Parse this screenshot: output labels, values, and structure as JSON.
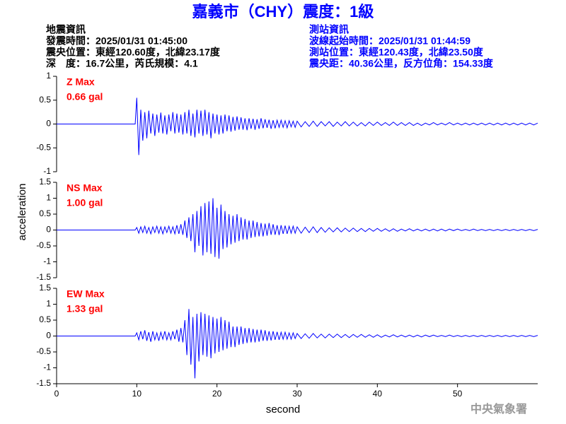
{
  "header": {
    "title": "嘉義市（CHY）震度：1級",
    "left": [
      "地震資訊",
      "發震時間：2025/01/31 01:45:00",
      "震央位置：東經120.60度，北緯23.17度",
      "深　度：16.7公里，芮氏規模：4.1"
    ],
    "right": [
      "測站資訊",
      "波線起始時間：2025/01/31 01:44:59",
      "測站位置：東經120.43度，北緯23.50度",
      "震央距：40.36公里，反方位角：154.33度"
    ]
  },
  "y_label": "acceleration",
  "watermark": "中央氣象署",
  "chart_data": [
    {
      "type": "line",
      "component_label": "Z Max",
      "max_label": "0.66 gal",
      "color": "#0000ff",
      "label_color": "#ff0000",
      "xlim": [
        0,
        60
      ],
      "ylim": [
        -1,
        1
      ],
      "yticks": [
        -1,
        -0.5,
        0,
        0.5,
        1
      ],
      "x": [
        0,
        9.8,
        10,
        10.25,
        10.5,
        10.75,
        11,
        11.25,
        11.5,
        11.75,
        12,
        12.25,
        12.5,
        12.75,
        13,
        13.25,
        13.5,
        13.75,
        14,
        14.25,
        14.5,
        14.75,
        15,
        15.25,
        15.5,
        15.75,
        16,
        16.25,
        16.5,
        16.75,
        17,
        17.25,
        17.5,
        17.75,
        18,
        18.25,
        18.5,
        18.75,
        19,
        19.25,
        19.5,
        19.75,
        20,
        20.25,
        20.5,
        20.75,
        21,
        21.25,
        21.5,
        21.75,
        22,
        22.25,
        22.5,
        22.75,
        23,
        23.25,
        23.5,
        23.75,
        24,
        24.25,
        24.5,
        24.75,
        25,
        25.25,
        25.5,
        25.75,
        26,
        26.25,
        26.5,
        26.75,
        27,
        27.25,
        27.5,
        27.75,
        28,
        28.25,
        28.5,
        28.75,
        29,
        29.25,
        29.5,
        29.75,
        30,
        30.5,
        31,
        31.5,
        32,
        32.5,
        33,
        33.5,
        34,
        34.5,
        35,
        35.5,
        36,
        36.5,
        37,
        37.5,
        38,
        38.5,
        39,
        39.5,
        40,
        40.5,
        41,
        41.5,
        42,
        42.5,
        43,
        43.5,
        44,
        44.5,
        45,
        45.5,
        46,
        46.5,
        47,
        47.5,
        48,
        48.5,
        49,
        49.5,
        50,
        50.5,
        51,
        51.5,
        52,
        52.5,
        53,
        53.5,
        54,
        54.5,
        55,
        55.5,
        56,
        56.5,
        57,
        57.5,
        58,
        58.5,
        59,
        59.5,
        60
      ],
      "values": [
        0,
        0,
        0.55,
        -0.65,
        0.3,
        -0.35,
        0.25,
        -0.3,
        0.28,
        -0.2,
        0.22,
        -0.25,
        0.2,
        -0.18,
        0.24,
        -0.2,
        0.18,
        -0.22,
        0.2,
        -0.15,
        0.25,
        -0.2,
        0.22,
        -0.18,
        0.2,
        -0.22,
        0.25,
        -0.2,
        0.3,
        -0.25,
        0.22,
        -0.28,
        0.3,
        -0.2,
        0.28,
        -0.25,
        0.3,
        -0.22,
        0.25,
        -0.3,
        0.22,
        -0.2,
        0.2,
        -0.22,
        0.18,
        -0.2,
        0.2,
        -0.15,
        0.18,
        -0.16,
        0.15,
        -0.14,
        0.16,
        -0.12,
        0.14,
        -0.12,
        0.12,
        -0.13,
        0.12,
        -0.1,
        0.11,
        -0.12,
        0.1,
        -0.1,
        0.12,
        -0.09,
        0.1,
        -0.08,
        0.09,
        -0.1,
        0.08,
        -0.09,
        0.08,
        -0.07,
        0.08,
        -0.07,
        0.07,
        -0.08,
        0.07,
        -0.06,
        0.06,
        -0.07,
        0.06,
        -0.06,
        0.05,
        -0.05,
        0.06,
        -0.05,
        0.05,
        -0.04,
        0.05,
        -0.05,
        0.04,
        -0.04,
        0.05,
        -0.04,
        0.04,
        -0.04,
        0.03,
        -0.04,
        0.04,
        -0.03,
        0.04,
        -0.03,
        0.03,
        -0.03,
        0.04,
        -0.03,
        0.03,
        -0.03,
        0.03,
        -0.03,
        0.02,
        -0.03,
        0.02,
        -0.02,
        0.03,
        -0.02,
        0.02,
        -0.02,
        0.03,
        -0.02,
        0.02,
        -0.02,
        0.02,
        -0.02,
        0.02,
        -0.02,
        0.02,
        -0.02,
        0.02,
        -0.02,
        0.02,
        -0.02,
        0.02,
        -0.02,
        0.02,
        -0.02,
        0.02,
        -0.02,
        0.02,
        -0.02,
        0.02
      ]
    },
    {
      "type": "line",
      "component_label": "NS Max",
      "max_label": "1.00 gal",
      "color": "#0000ff",
      "label_color": "#ff0000",
      "xlim": [
        0,
        60
      ],
      "ylim": [
        -1.5,
        1.5
      ],
      "yticks": [
        -1.5,
        -1,
        -0.5,
        0,
        0.5,
        1,
        1.5
      ],
      "x": [
        0,
        9.8,
        10,
        10.25,
        10.5,
        10.75,
        11,
        11.25,
        11.5,
        11.75,
        12,
        12.25,
        12.5,
        12.75,
        13,
        13.25,
        13.5,
        13.75,
        14,
        14.25,
        14.5,
        14.75,
        15,
        15.25,
        15.5,
        15.75,
        16,
        16.25,
        16.5,
        16.75,
        17,
        17.25,
        17.5,
        17.75,
        18,
        18.25,
        18.5,
        18.75,
        19,
        19.25,
        19.5,
        19.75,
        20,
        20.25,
        20.5,
        20.75,
        21,
        21.25,
        21.5,
        21.75,
        22,
        22.25,
        22.5,
        22.75,
        23,
        23.25,
        23.5,
        23.75,
        24,
        24.25,
        24.5,
        24.75,
        25,
        25.25,
        25.5,
        25.75,
        26,
        26.25,
        26.5,
        26.75,
        27,
        27.25,
        27.5,
        27.75,
        28,
        28.25,
        28.5,
        28.75,
        29,
        29.25,
        29.5,
        29.75,
        30,
        30.5,
        31,
        31.5,
        32,
        32.5,
        33,
        33.5,
        34,
        34.5,
        35,
        35.5,
        36,
        36.5,
        37,
        37.5,
        38,
        38.5,
        39,
        39.5,
        40,
        40.5,
        41,
        41.5,
        42,
        42.5,
        43,
        43.5,
        44,
        44.5,
        45,
        45.5,
        46,
        46.5,
        47,
        47.5,
        48,
        48.5,
        49,
        49.5,
        50,
        50.5,
        51,
        51.5,
        52,
        52.5,
        53,
        53.5,
        54,
        54.5,
        55,
        55.5,
        56,
        56.5,
        57,
        57.5,
        58,
        58.5,
        59,
        59.5,
        60
      ],
      "values": [
        0,
        0,
        0.08,
        -0.1,
        0.1,
        -0.08,
        0.12,
        -0.1,
        0.08,
        -0.12,
        0.1,
        -0.08,
        0.12,
        -0.1,
        0.1,
        -0.12,
        0.1,
        -0.08,
        0.12,
        -0.1,
        0.1,
        -0.12,
        0.15,
        -0.12,
        0.18,
        -0.15,
        0.3,
        -0.25,
        0.4,
        -0.35,
        0.5,
        -0.7,
        0.6,
        -0.5,
        0.75,
        -0.8,
        0.85,
        -0.7,
        0.9,
        -0.75,
        1.0,
        -0.85,
        0.7,
        -0.9,
        0.8,
        -0.6,
        0.6,
        -0.55,
        0.5,
        -0.45,
        0.45,
        -0.4,
        0.5,
        -0.35,
        0.4,
        -0.3,
        0.35,
        -0.3,
        0.3,
        -0.25,
        0.3,
        -0.22,
        0.25,
        -0.2,
        0.22,
        -0.2,
        0.2,
        -0.18,
        0.22,
        -0.15,
        0.18,
        -0.15,
        0.15,
        -0.16,
        0.15,
        -0.12,
        0.14,
        -0.12,
        0.12,
        -0.1,
        0.12,
        -0.1,
        0.1,
        -0.1,
        0.09,
        -0.08,
        0.1,
        -0.08,
        0.08,
        -0.07,
        0.07,
        -0.06,
        0.07,
        -0.06,
        0.06,
        -0.05,
        0.06,
        -0.05,
        0.05,
        -0.05,
        0.05,
        -0.04,
        0.05,
        -0.04,
        0.04,
        -0.04,
        0.04,
        -0.04,
        0.03,
        -0.03,
        0.04,
        -0.03,
        0.03,
        -0.03,
        0.03,
        -0.03,
        0.03,
        -0.03,
        0.03,
        -0.03,
        0.03,
        -0.02,
        0.03,
        -0.02,
        0.02,
        -0.02,
        0.03,
        -0.02,
        0.02,
        -0.02,
        0.02,
        -0.02,
        0.02,
        -0.02,
        0.02,
        -0.02,
        0.02,
        -0.02,
        0.02,
        -0.02,
        0.02,
        -0.02,
        0.02
      ]
    },
    {
      "type": "line",
      "component_label": "EW Max",
      "max_label": "1.33 gal",
      "color": "#0000ff",
      "label_color": "#ff0000",
      "xlim": [
        0,
        60
      ],
      "ylim": [
        -1.5,
        1.5
      ],
      "yticks": [
        -1.5,
        -1,
        -0.5,
        0,
        0.5,
        1,
        1.5
      ],
      "xticks": [
        0,
        10,
        20,
        30,
        40,
        50
      ],
      "xlabel": "second",
      "x": [
        0,
        9.8,
        10,
        10.25,
        10.5,
        10.75,
        11,
        11.25,
        11.5,
        11.75,
        12,
        12.25,
        12.5,
        12.75,
        13,
        13.25,
        13.5,
        13.75,
        14,
        14.25,
        14.5,
        14.75,
        15,
        15.25,
        15.5,
        15.75,
        16,
        16.25,
        16.5,
        16.75,
        17,
        17.25,
        17.5,
        17.75,
        18,
        18.25,
        18.5,
        18.75,
        19,
        19.25,
        19.5,
        19.75,
        20,
        20.25,
        20.5,
        20.75,
        21,
        21.25,
        21.5,
        21.75,
        22,
        22.25,
        22.5,
        22.75,
        23,
        23.25,
        23.5,
        23.75,
        24,
        24.25,
        24.5,
        24.75,
        25,
        25.25,
        25.5,
        25.75,
        26,
        26.25,
        26.5,
        26.75,
        27,
        27.25,
        27.5,
        27.75,
        28,
        28.25,
        28.5,
        28.75,
        29,
        29.25,
        29.5,
        29.75,
        30,
        30.5,
        31,
        31.5,
        32,
        32.5,
        33,
        33.5,
        34,
        34.5,
        35,
        35.5,
        36,
        36.5,
        37,
        37.5,
        38,
        38.5,
        39,
        39.5,
        40,
        40.5,
        41,
        41.5,
        42,
        42.5,
        43,
        43.5,
        44,
        44.5,
        45,
        45.5,
        46,
        46.5,
        47,
        47.5,
        48,
        48.5,
        49,
        49.5,
        50,
        50.5,
        51,
        51.5,
        52,
        52.5,
        53,
        53.5,
        54,
        54.5,
        55,
        55.5,
        56,
        56.5,
        57,
        57.5,
        58,
        58.5,
        59,
        59.5,
        60
      ],
      "values": [
        0,
        0,
        0.1,
        -0.12,
        0.15,
        -0.1,
        0.18,
        -0.15,
        0.12,
        -0.18,
        0.15,
        -0.12,
        0.1,
        -0.15,
        0.12,
        -0.1,
        0.15,
        -0.12,
        0.1,
        -0.12,
        0.15,
        -0.1,
        0.2,
        -0.18,
        0.25,
        -0.2,
        0.5,
        -0.6,
        0.85,
        -0.9,
        0.6,
        -1.33,
        0.7,
        -0.8,
        0.75,
        -0.6,
        0.7,
        -0.65,
        0.65,
        -0.7,
        0.6,
        -0.55,
        0.55,
        -0.5,
        0.6,
        -0.45,
        0.5,
        -0.4,
        0.45,
        -0.35,
        0.3,
        -0.35,
        0.3,
        -0.28,
        0.3,
        -0.25,
        0.25,
        -0.22,
        0.25,
        -0.2,
        0.22,
        -0.2,
        0.2,
        -0.18,
        0.2,
        -0.15,
        0.18,
        -0.15,
        0.15,
        -0.14,
        0.15,
        -0.12,
        0.13,
        -0.12,
        0.12,
        -0.1,
        0.12,
        -0.1,
        0.1,
        -0.1,
        0.1,
        -0.08,
        0.08,
        -0.08,
        0.07,
        -0.07,
        0.08,
        -0.06,
        0.06,
        -0.06,
        0.06,
        -0.05,
        0.06,
        -0.05,
        0.05,
        -0.05,
        0.05,
        -0.04,
        0.05,
        -0.04,
        0.04,
        -0.04,
        0.04,
        -0.04,
        0.03,
        -0.03,
        0.04,
        -0.03,
        0.03,
        -0.03,
        0.03,
        -0.03,
        0.03,
        -0.03,
        0.03,
        -0.02,
        0.03,
        -0.02,
        0.02,
        -0.02,
        0.03,
        -0.02,
        0.02,
        -0.02,
        0.02,
        -0.02,
        0.02,
        -0.02,
        0.02,
        -0.02,
        0.02,
        -0.02,
        0.02,
        -0.02,
        0.02,
        -0.02,
        0.02,
        -0.02,
        0.02,
        -0.02,
        0.02,
        -0.02,
        0.02
      ]
    }
  ]
}
